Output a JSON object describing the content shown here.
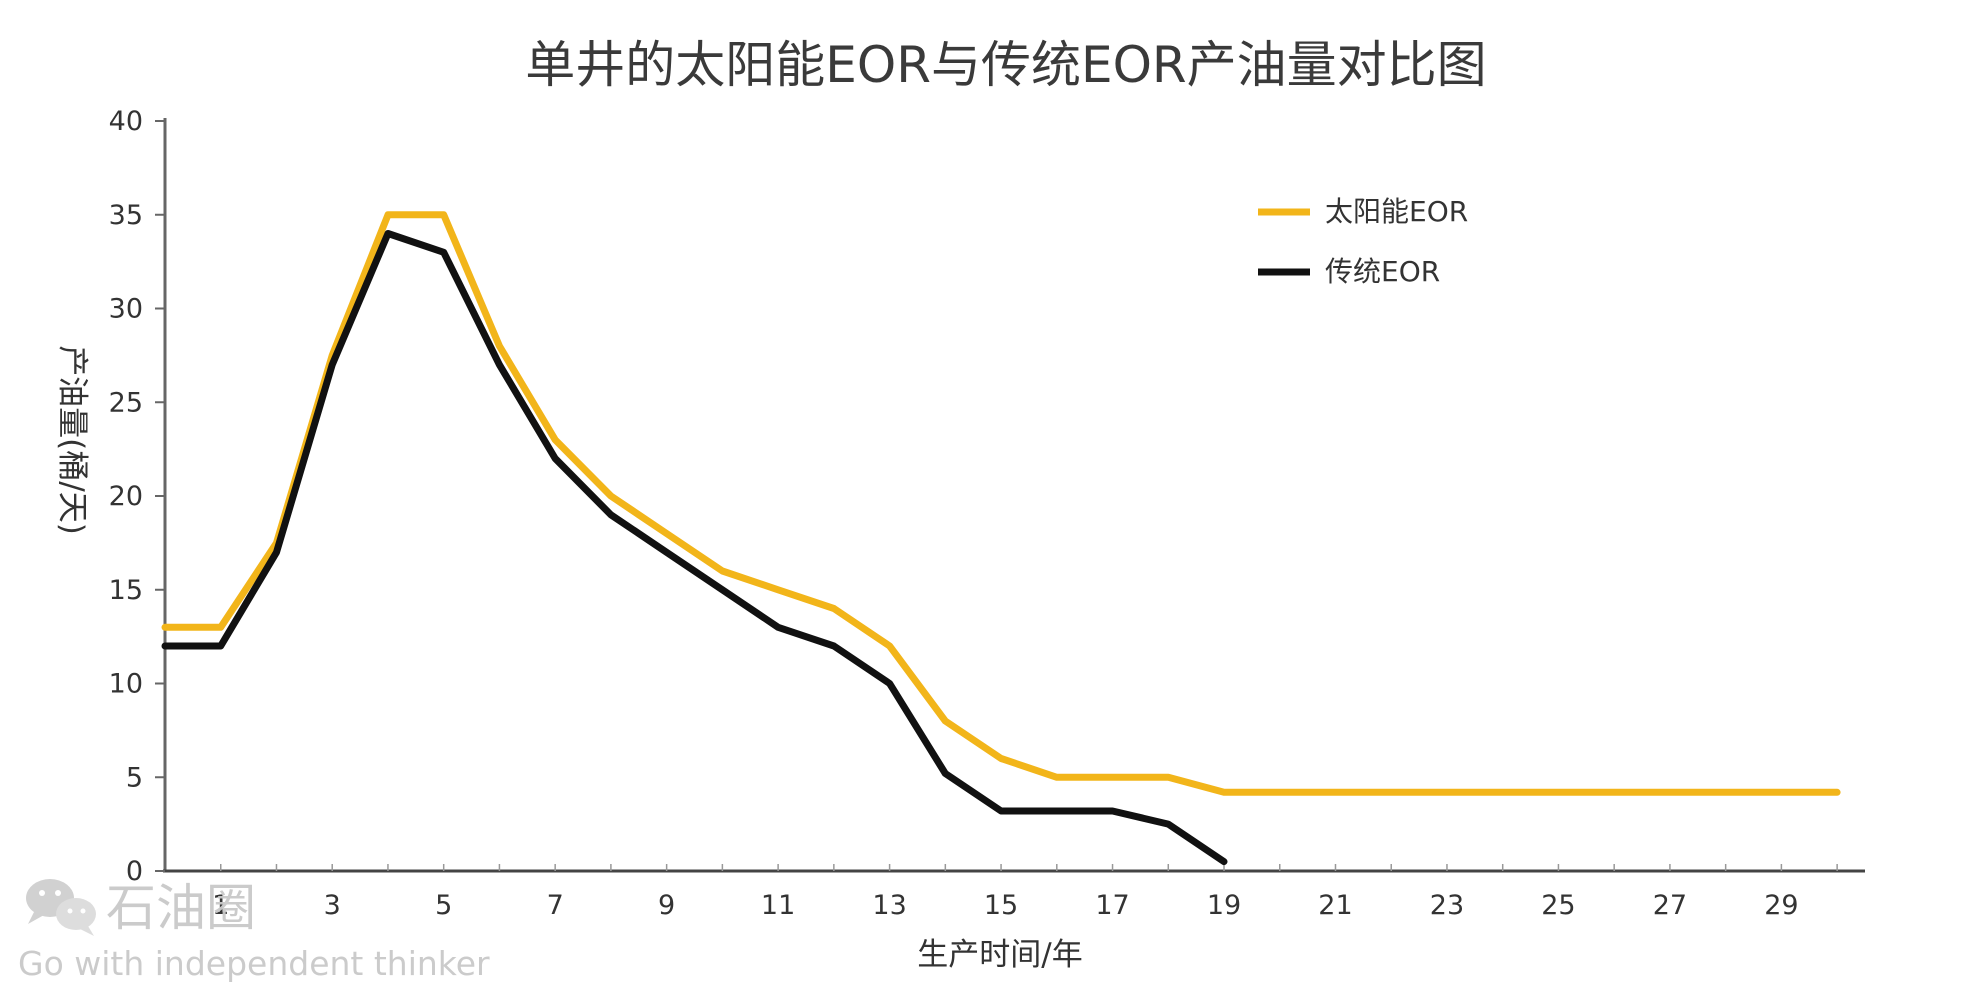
{
  "chart_data": {
    "type": "line",
    "title": "单井的太阳能EOR与传统EOR产油量对比图",
    "xlabel": "生产时间/年",
    "ylabel": "产油量(桶/天)",
    "x": [
      0,
      1,
      2,
      3,
      4,
      5,
      6,
      7,
      8,
      9,
      10,
      11,
      12,
      13,
      14,
      15,
      16,
      17,
      18,
      19,
      20,
      21,
      22,
      23,
      24,
      25,
      26,
      27,
      28,
      29,
      30
    ],
    "xlim": [
      0,
      30.5
    ],
    "x_ticks": [
      1,
      3,
      5,
      7,
      9,
      11,
      13,
      15,
      17,
      19,
      21,
      23,
      25,
      27,
      29
    ],
    "ylim": [
      0,
      40
    ],
    "y_ticks": [
      0,
      5,
      10,
      15,
      20,
      25,
      30,
      35,
      40
    ],
    "grid": false,
    "legend_position": "top-right",
    "series": [
      {
        "name": "太阳能EOR",
        "color": "#F2B51A",
        "values": [
          13,
          13,
          17.5,
          27.5,
          35,
          35,
          28,
          23,
          20,
          18,
          16,
          15,
          14,
          12,
          8,
          6,
          5,
          5,
          5,
          4.2,
          4.2,
          4.2,
          4.2,
          4.2,
          4.2,
          4.2,
          4.2,
          4.2,
          4.2,
          4.2,
          4.2
        ]
      },
      {
        "name": "传统EOR",
        "color": "#111111",
        "values": [
          12,
          12,
          17,
          27,
          34,
          33,
          27,
          22,
          19,
          17,
          15,
          13,
          12,
          10,
          5.2,
          3.2,
          3.2,
          3.2,
          2.5,
          0.5,
          null,
          null,
          null,
          null,
          null,
          null,
          null,
          null,
          null,
          null,
          null
        ]
      }
    ]
  },
  "watermark": {
    "name": "石油圈",
    "slogan": "Go with independent thinker",
    "icon": "wechat-icon",
    "color": "#c9c9c9"
  }
}
